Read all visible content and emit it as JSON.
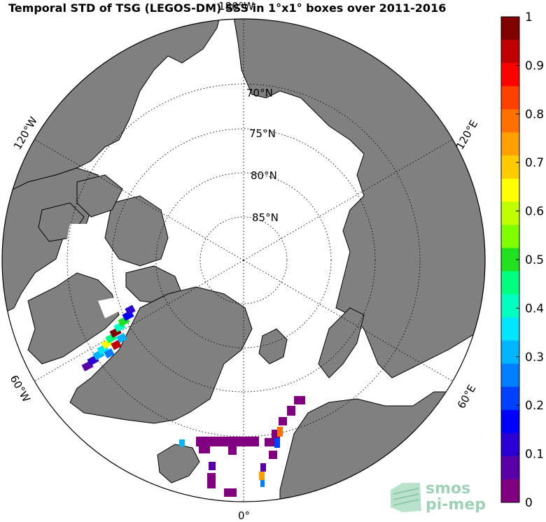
{
  "title": "Temporal STD of TSG (LEGOS-DM) SSS in 1°x1° boxes over 2011-2016",
  "map": {
    "projection": "north-polar-stereographic",
    "parallels": [
      {
        "id": "lat70",
        "label": "70°N"
      },
      {
        "id": "lat75",
        "label": "75°N"
      },
      {
        "id": "lat80",
        "label": "80°N"
      },
      {
        "id": "lat85",
        "label": "85°N"
      }
    ],
    "meridians": [
      {
        "id": "lon0",
        "label": "0°"
      },
      {
        "id": "lon60e",
        "label": "60°E"
      },
      {
        "id": "lon120e",
        "label": "120°E"
      },
      {
        "id": "lon180",
        "label": "180°W"
      },
      {
        "id": "lon120w",
        "label": "120°W"
      },
      {
        "id": "lon60w",
        "label": "60°W"
      }
    ],
    "land_color": "#808080",
    "ocean_color": "#ffffff"
  },
  "colorbar": {
    "ticks": [
      "0",
      "0.1",
      "0.2",
      "0.3",
      "0.4",
      "0.5",
      "0.6",
      "0.7",
      "0.8",
      "0.9",
      "1"
    ],
    "min": 0,
    "max": 1,
    "colors": [
      "#800080",
      "#5a00a8",
      "#2a00d4",
      "#0000ff",
      "#0040ff",
      "#0080ff",
      "#00b4ff",
      "#00e6ff",
      "#00ffc0",
      "#00ff80",
      "#20e020",
      "#80ff00",
      "#c0ff00",
      "#ffff00",
      "#ffcc00",
      "#ffa000",
      "#ff7000",
      "#ff4000",
      "#ff0000",
      "#c00000",
      "#800000"
    ]
  },
  "logo": {
    "line1": "smos",
    "line2": "pi-mep"
  }
}
